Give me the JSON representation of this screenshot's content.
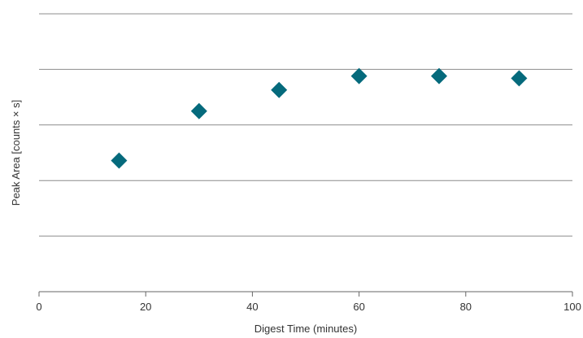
{
  "chart_data": {
    "type": "scatter",
    "xlabel": "Digest Time (minutes)",
    "ylabel": "Peak Area [counts × s]",
    "xlim": [
      0,
      100
    ],
    "ylim": [
      0,
      5
    ],
    "x_ticks": [
      0,
      20,
      40,
      60,
      80,
      100
    ],
    "y_gridlines": [
      0,
      1,
      2,
      3,
      4,
      5
    ],
    "y_tick_labels_shown": false,
    "grid": "horizontal",
    "marker": "diamond",
    "marker_color": "#056a7c",
    "grid_color": "#8c8c8c",
    "series": [
      {
        "points": [
          {
            "x": 15,
            "y": 2.36
          },
          {
            "x": 30,
            "y": 3.25
          },
          {
            "x": 45,
            "y": 3.63
          },
          {
            "x": 60,
            "y": 3.88
          },
          {
            "x": 75,
            "y": 3.88
          },
          {
            "x": 90,
            "y": 3.84
          }
        ]
      }
    ]
  }
}
